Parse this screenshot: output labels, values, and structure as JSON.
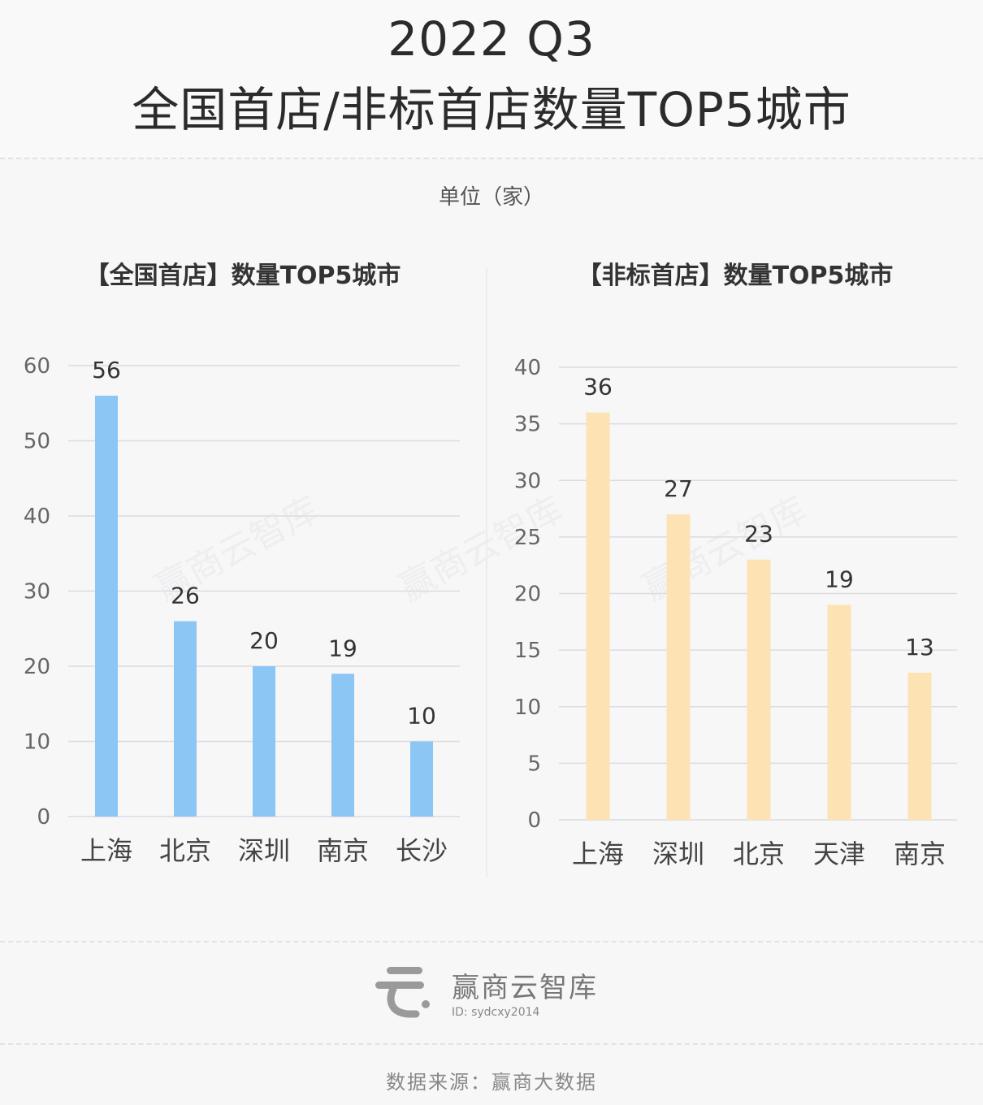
{
  "title": {
    "line1": "2022 Q3",
    "line2": "全国首店/非标首店数量TOP5城市"
  },
  "unit": "单位（家）",
  "watermark": "赢商云智库",
  "footer": {
    "brand": "赢商云智库",
    "id": "ID: sydcxy2014",
    "source": "数据来源：赢商大数据"
  },
  "colors": {
    "left_bar": "#8cc6f5",
    "right_bar": "#fde2b4",
    "grid": "#dcdcdf",
    "axis_text": "#666666"
  },
  "chart_data": [
    {
      "type": "bar",
      "title": "【全国首店】数量TOP5城市",
      "categories": [
        "上海",
        "北京",
        "深圳",
        "南京",
        "长沙"
      ],
      "values": [
        56,
        26,
        20,
        19,
        10
      ],
      "ylim": [
        0,
        60
      ],
      "yticks": [
        0,
        10,
        20,
        30,
        40,
        50,
        60
      ],
      "grid": true
    },
    {
      "type": "bar",
      "title": "【非标首店】数量TOP5城市",
      "categories": [
        "上海",
        "深圳",
        "北京",
        "天津",
        "南京"
      ],
      "values": [
        36,
        27,
        23,
        19,
        13
      ],
      "ylim": [
        0,
        40
      ],
      "yticks": [
        0,
        5,
        10,
        15,
        20,
        25,
        30,
        35,
        40
      ],
      "grid": true
    }
  ]
}
